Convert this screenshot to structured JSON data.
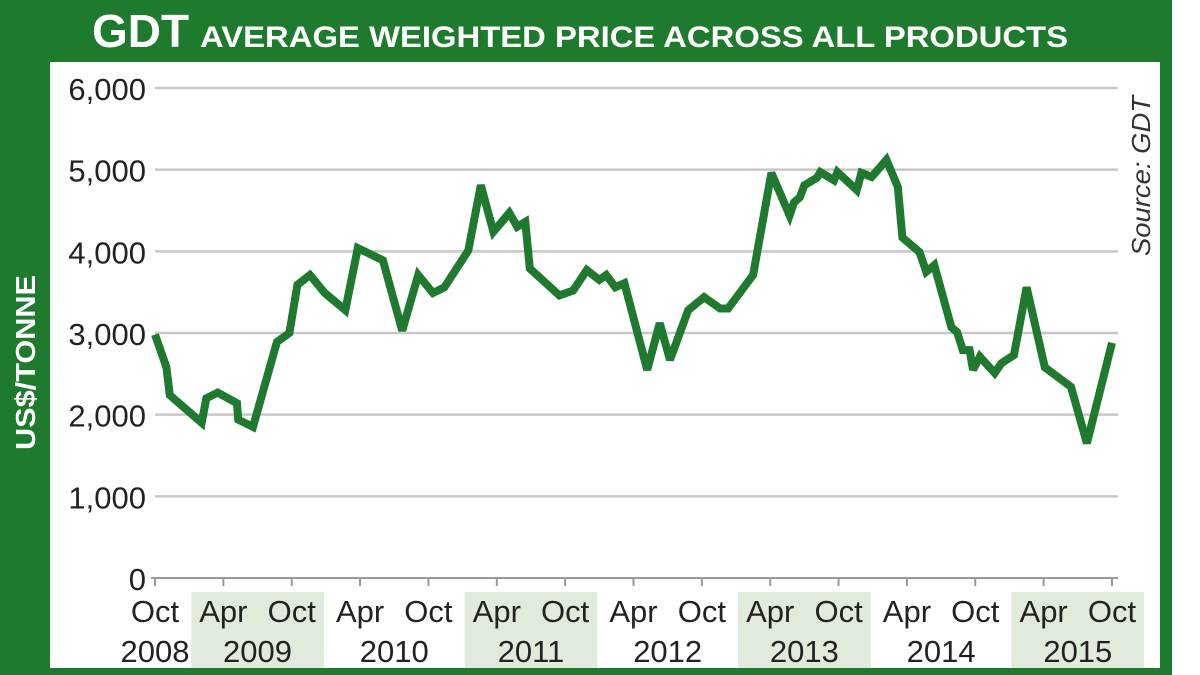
{
  "chart_data": {
    "type": "line",
    "title_brand": "GDT",
    "title": "AVERAGE WEIGHTED PRICE ACROSS ALL PRODUCTS",
    "ylabel": "US$/TONNE",
    "xlabel": "",
    "source": "Source: GDT",
    "ylim": [
      0,
      6000
    ],
    "yticks": [
      0,
      1000,
      2000,
      3000,
      4000,
      5000,
      6000
    ],
    "ytick_labels": [
      "0",
      "1,000",
      "2,000",
      "3,000",
      "4,000",
      "5,000",
      "6,000"
    ],
    "grid": true,
    "x_units": "months since Oct 2008",
    "xlim": [
      0,
      84
    ],
    "xticks": [
      {
        "m": 0,
        "label": "Oct"
      },
      {
        "m": 6,
        "label": "Apr"
      },
      {
        "m": 12,
        "label": "Oct"
      },
      {
        "m": 18,
        "label": "Apr"
      },
      {
        "m": 24,
        "label": "Oct"
      },
      {
        "m": 30,
        "label": "Apr"
      },
      {
        "m": 36,
        "label": "Oct"
      },
      {
        "m": 42,
        "label": "Apr"
      },
      {
        "m": 48,
        "label": "Oct"
      },
      {
        "m": 54,
        "label": "Apr"
      },
      {
        "m": 60,
        "label": "Oct"
      },
      {
        "m": 66,
        "label": "Apr"
      },
      {
        "m": 72,
        "label": "Oct"
      },
      {
        "m": 78,
        "label": "Apr"
      },
      {
        "m": 84,
        "label": "Oct"
      }
    ],
    "years": [
      {
        "label": "2008",
        "from": -3,
        "to": 3,
        "shaded": false
      },
      {
        "label": "2009",
        "from": 3,
        "to": 15,
        "shaded": true
      },
      {
        "label": "2010",
        "from": 15,
        "to": 27,
        "shaded": false
      },
      {
        "label": "2011",
        "from": 27,
        "to": 39,
        "shaded": true
      },
      {
        "label": "2012",
        "from": 39,
        "to": 51,
        "shaded": false
      },
      {
        "label": "2013",
        "from": 51,
        "to": 63,
        "shaded": true
      },
      {
        "label": "2014",
        "from": 63,
        "to": 75,
        "shaded": false
      },
      {
        "label": "2015",
        "from": 75,
        "to": 87,
        "shaded": true
      }
    ],
    "series": [
      {
        "name": "GDT average weighted price",
        "color": "#1f7a30",
        "points": [
          [
            0,
            2980
          ],
          [
            1,
            2580
          ],
          [
            1.3,
            2240
          ],
          [
            4.1,
            1900
          ],
          [
            4.5,
            2200
          ],
          [
            5.5,
            2270
          ],
          [
            7.2,
            2140
          ],
          [
            7.3,
            1940
          ],
          [
            8.6,
            1850
          ],
          [
            10.7,
            2890
          ],
          [
            11.8,
            3000
          ],
          [
            12.5,
            3590
          ],
          [
            13.6,
            3710
          ],
          [
            14.9,
            3490
          ],
          [
            16.7,
            3280
          ],
          [
            17.8,
            4040
          ],
          [
            20,
            3890
          ],
          [
            21.7,
            3030
          ],
          [
            23.1,
            3710
          ],
          [
            24.4,
            3490
          ],
          [
            25.4,
            3560
          ],
          [
            27.5,
            4010
          ],
          [
            28.6,
            4810
          ],
          [
            29.7,
            4240
          ],
          [
            31.1,
            4470
          ],
          [
            31.8,
            4300
          ],
          [
            32.5,
            4360
          ],
          [
            32.9,
            3790
          ],
          [
            35.5,
            3460
          ],
          [
            36.7,
            3520
          ],
          [
            37.9,
            3770
          ],
          [
            39,
            3650
          ],
          [
            39.6,
            3710
          ],
          [
            40.4,
            3560
          ],
          [
            41.2,
            3610
          ],
          [
            43.2,
            2550
          ],
          [
            44.3,
            3120
          ],
          [
            45.2,
            2670
          ],
          [
            46.8,
            3280
          ],
          [
            48.2,
            3440
          ],
          [
            49.6,
            3300
          ],
          [
            50.3,
            3300
          ],
          [
            52.5,
            3710
          ],
          [
            54.1,
            4960
          ],
          [
            55.7,
            4440
          ],
          [
            56.1,
            4600
          ],
          [
            56.6,
            4660
          ],
          [
            57,
            4810
          ],
          [
            58.1,
            4900
          ],
          [
            58.4,
            4970
          ],
          [
            59.6,
            4870
          ],
          [
            59.9,
            4970
          ],
          [
            61.6,
            4750
          ],
          [
            62,
            4960
          ],
          [
            62.9,
            4910
          ],
          [
            64.2,
            5120
          ],
          [
            65.2,
            4790
          ],
          [
            65.6,
            4170
          ],
          [
            67.1,
            3990
          ],
          [
            67.7,
            3750
          ],
          [
            68.4,
            3830
          ],
          [
            69.9,
            3070
          ],
          [
            70.4,
            3010
          ],
          [
            70.9,
            2790
          ],
          [
            71.5,
            2790
          ],
          [
            71.8,
            2550
          ],
          [
            72.4,
            2710
          ],
          [
            73.7,
            2510
          ],
          [
            74.3,
            2630
          ],
          [
            75.4,
            2730
          ],
          [
            76.5,
            3560
          ],
          [
            78.1,
            2580
          ],
          [
            80.4,
            2340
          ],
          [
            81.8,
            1650
          ],
          [
            84,
            2880
          ]
        ]
      }
    ]
  },
  "colors": {
    "frame": "#1e7a2c",
    "band": "#e1ebdc",
    "grid": "#c8c8c8"
  }
}
